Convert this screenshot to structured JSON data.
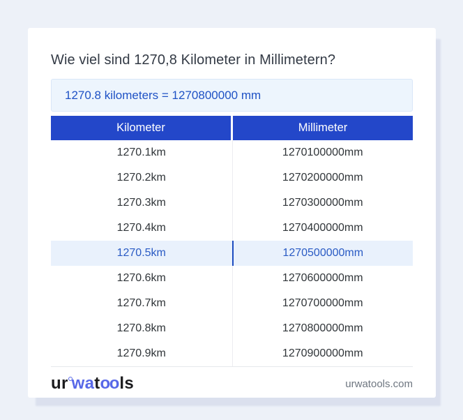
{
  "page": {
    "title": "Wie viel sind 1270,8 Kilometer in Millimetern?",
    "answer": "1270.8 kilometers = 1270800000 mm"
  },
  "table": {
    "headers": [
      "Kilometer",
      "Millimeter"
    ],
    "rows": [
      {
        "km": "1270.1km",
        "mm": "1270100000mm",
        "highlight": false
      },
      {
        "km": "1270.2km",
        "mm": "1270200000mm",
        "highlight": false
      },
      {
        "km": "1270.3km",
        "mm": "1270300000mm",
        "highlight": false
      },
      {
        "km": "1270.4km",
        "mm": "1270400000mm",
        "highlight": false
      },
      {
        "km": "1270.5km",
        "mm": "1270500000mm",
        "highlight": true
      },
      {
        "km": "1270.6km",
        "mm": "1270600000mm",
        "highlight": false
      },
      {
        "km": "1270.7km",
        "mm": "1270700000mm",
        "highlight": false
      },
      {
        "km": "1270.8km",
        "mm": "1270800000mm",
        "highlight": false
      },
      {
        "km": "1270.9km",
        "mm": "1270900000mm",
        "highlight": false
      }
    ]
  },
  "footer": {
    "logo_part1": "ur",
    "logo_part2": "wa",
    "logo_part3": "t",
    "logo_part4": "oo",
    "logo_part5": "ls",
    "site": "urwatools.com"
  },
  "colors": {
    "page_background": "#edf1f8",
    "header_blue": "#2347c9",
    "answer_background": "#edf5fd",
    "answer_text": "#1f52c5",
    "highlight_background": "#e9f1fc",
    "highlight_text": "#2a5bc4",
    "highlight_divider": "#1d4cc0",
    "logo_blue": "#5868e8",
    "body_text": "#303539",
    "url_gray": "#6e7680"
  }
}
